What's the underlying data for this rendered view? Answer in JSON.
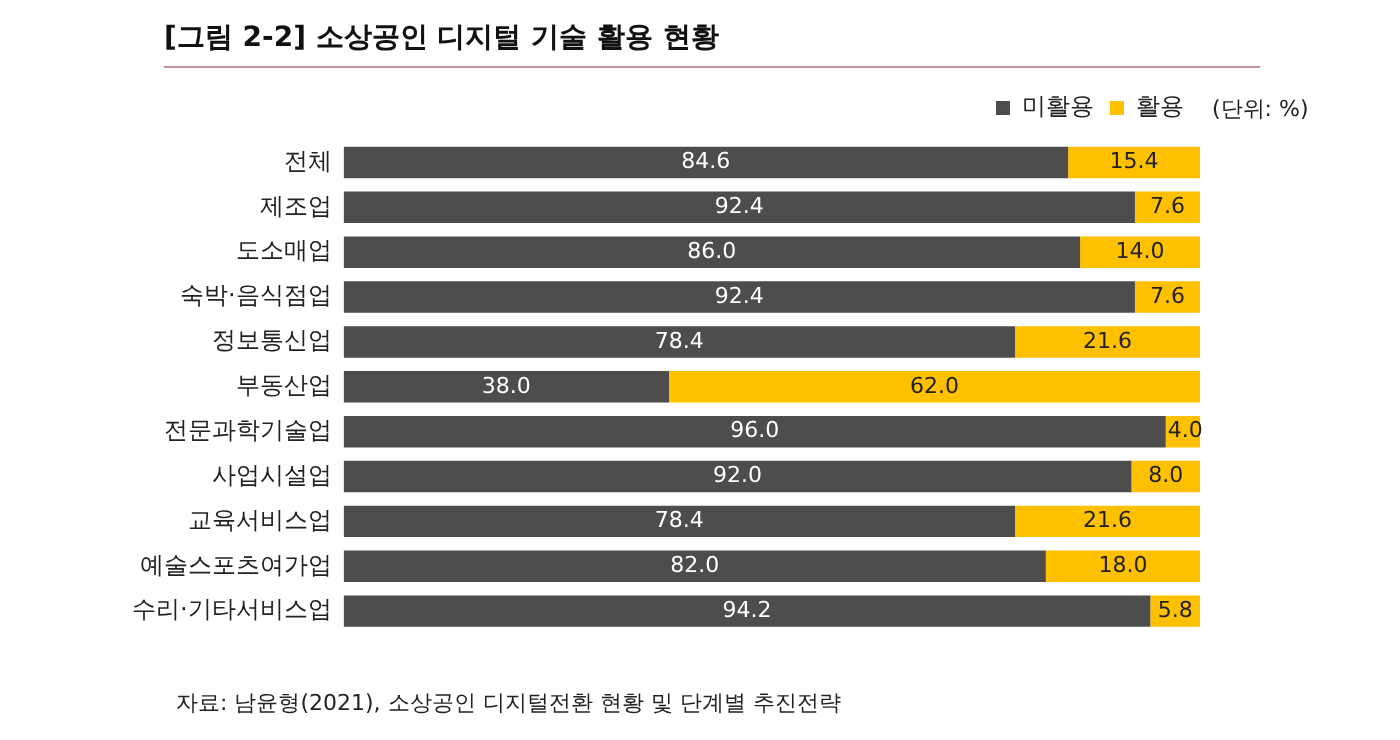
{
  "chart_data": {
    "type": "bar",
    "orientation": "horizontal",
    "stacked": true,
    "title": "[그림 2-2] 소상공인 디지털 기술 활용 현황",
    "categories": [
      "전체",
      "제조업",
      "도소매업",
      "숙박·음식점업",
      "정보통신업",
      "부동산업",
      "전문과학기술업",
      "사업시설업",
      "교육서비스업",
      "예술스포츠여가업",
      "수리·기타서비스업"
    ],
    "series": [
      {
        "name": "미활용",
        "color": "#4d4d4d",
        "values": [
          84.6,
          92.4,
          86.0,
          92.4,
          78.4,
          38.0,
          96.0,
          92.0,
          78.4,
          82.0,
          94.2
        ],
        "value_labels": [
          "84.6",
          "92.4",
          "86.0",
          "92.4",
          "78.4",
          "38.0",
          "96.0",
          "92.0",
          "78.4",
          "82.0",
          "94.2"
        ]
      },
      {
        "name": "활용",
        "color": "#ffc000",
        "values": [
          15.4,
          7.6,
          14.0,
          7.6,
          21.6,
          62.0,
          4.0,
          8.0,
          21.6,
          18.0,
          5.8
        ],
        "value_labels": [
          "15.4",
          "7.6",
          "14.0",
          "7.6",
          "21.6",
          "62.0",
          "4.0",
          "8.0",
          "21.6",
          "18.0",
          "5.8"
        ]
      }
    ],
    "xlim": [
      0,
      100
    ],
    "tick_labels": "y",
    "grid": false,
    "legend": "top right",
    "annotations": [
      "(단위: %)",
      "자료: 남윤형(2021), 소상공인 디지털전환 현황 및 단계별 추진전략"
    ]
  }
}
